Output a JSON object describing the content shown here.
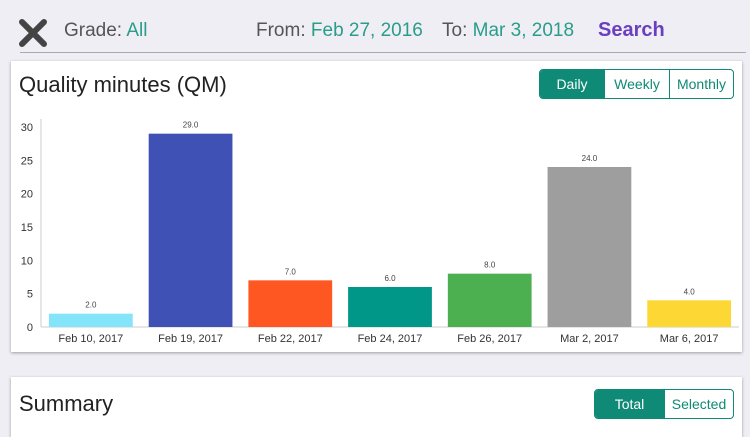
{
  "header": {
    "grade_label": "Grade:",
    "grade_value": "All",
    "from_label": "From:",
    "from_value": "Feb 27, 2016",
    "to_label": "To:",
    "to_value": "Mar 3, 2018",
    "search_label": "Search",
    "close_icon": "close-icon"
  },
  "qm_card": {
    "title": "Quality minutes (QM)",
    "tabs": [
      {
        "label": "Daily",
        "selected": true
      },
      {
        "label": "Weekly",
        "selected": false
      },
      {
        "label": "Monthly",
        "selected": false
      }
    ]
  },
  "summary_card": {
    "title": "Summary",
    "tabs": [
      {
        "label": "Total",
        "selected": true
      },
      {
        "label": "Selected",
        "selected": false
      }
    ]
  },
  "chart_data": {
    "type": "bar",
    "title": "",
    "xlabel": "",
    "ylabel": "",
    "categories": [
      "Feb 10, 2017",
      "Feb 19, 2017",
      "Feb 22, 2017",
      "Feb 24, 2017",
      "Feb 26, 2017",
      "Mar 2, 2017",
      "Mar 6, 2017"
    ],
    "values": [
      2.0,
      29.0,
      7.0,
      6.0,
      8.0,
      24.0,
      4.0
    ],
    "value_labels": [
      "2.0",
      "29.0",
      "7.0",
      "6.0",
      "8.0",
      "24.0",
      "4.0"
    ],
    "colors": [
      "#84e4fa",
      "#3f51b5",
      "#ff5722",
      "#009688",
      "#4caf50",
      "#9e9e9e",
      "#fdd835"
    ],
    "yticks": [
      0,
      5,
      10,
      15,
      20,
      25,
      30
    ],
    "ylim": [
      0,
      30
    ],
    "grid": false,
    "legend": "none"
  }
}
